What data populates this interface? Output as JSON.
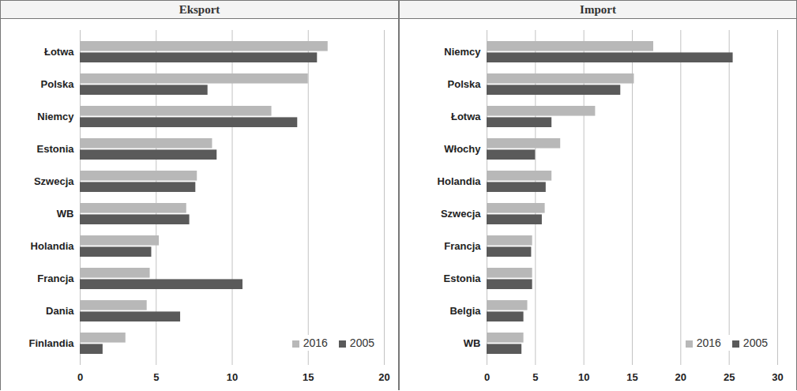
{
  "chart_data": [
    {
      "type": "bar",
      "title": "Eksport",
      "orientation": "horizontal",
      "grid": true,
      "legend": "lower right",
      "categories": [
        "Łotwa",
        "Polska",
        "Niemcy",
        "Estonia",
        "Szwecja",
        "WB",
        "Holandia",
        "Francja",
        "Dania",
        "Finlandia"
      ],
      "series": [
        {
          "name": "2016",
          "color": "#b8b8b8",
          "values": [
            16.3,
            15.0,
            12.6,
            8.7,
            7.7,
            7.0,
            5.2,
            4.6,
            4.4,
            3.0
          ]
        },
        {
          "name": "2005",
          "color": "#5a5a5a",
          "values": [
            15.6,
            8.4,
            14.3,
            9.0,
            7.6,
            7.2,
            4.7,
            10.7,
            6.6,
            1.5
          ]
        }
      ],
      "xlim": [
        0,
        20
      ],
      "xticks": [
        0,
        5,
        10,
        15,
        20
      ]
    },
    {
      "type": "bar",
      "title": "Import",
      "orientation": "horizontal",
      "grid": true,
      "legend": "lower right",
      "categories": [
        "Niemcy",
        "Polska",
        "Łotwa",
        "Włochy",
        "Holandia",
        "Szwecja",
        "Francja",
        "Estonia",
        "Belgia",
        "WB"
      ],
      "series": [
        {
          "name": "2016",
          "color": "#b8b8b8",
          "values": [
            17.2,
            15.2,
            11.2,
            7.6,
            6.7,
            6.0,
            4.7,
            4.7,
            4.2,
            3.8
          ]
        },
        {
          "name": "2005",
          "color": "#5a5a5a",
          "values": [
            25.4,
            13.8,
            6.7,
            5.0,
            6.1,
            5.7,
            4.6,
            4.7,
            3.8,
            3.6
          ]
        }
      ],
      "xlim": [
        0,
        30
      ],
      "xticks": [
        0,
        5,
        10,
        15,
        20,
        25,
        30
      ]
    }
  ]
}
